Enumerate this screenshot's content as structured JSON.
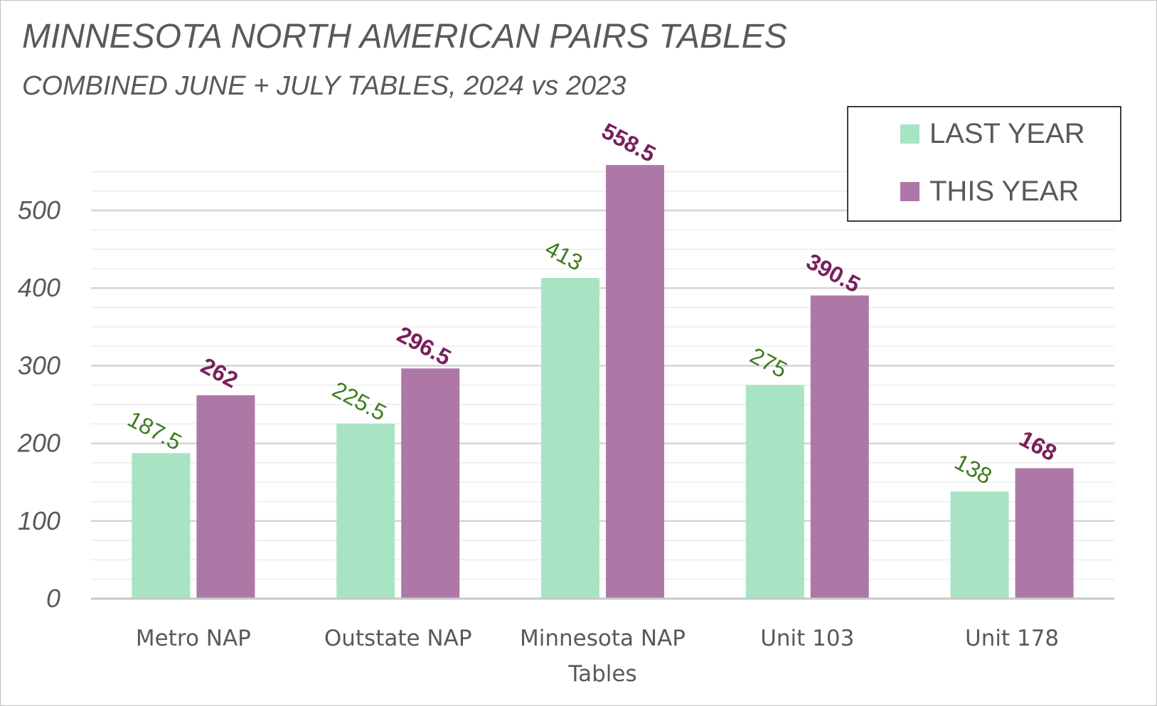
{
  "chart_data": {
    "type": "bar",
    "title": "MINNESOTA NORTH AMERICAN PAIRS TABLES",
    "subtitle": "COMBINED JUNE + JULY TABLES, 2024 vs 2023",
    "categories": [
      [
        "Metro NAP"
      ],
      [
        "Outstate NAP"
      ],
      [
        "Minnesota NAP",
        "Tables"
      ],
      [
        "Unit 103"
      ],
      [
        "Unit 178"
      ]
    ],
    "series": [
      {
        "name": "LAST YEAR",
        "color": "#a8e4c3",
        "label_color": "#3c7d1e",
        "values": [
          187.5,
          225.5,
          413,
          275,
          138
        ]
      },
      {
        "name": "THIS YEAR",
        "color": "#ad78a6",
        "label_color": "#7a1f5c",
        "values": [
          262,
          296.5,
          558.5,
          390.5,
          168
        ]
      }
    ],
    "yticks": [
      0,
      100,
      200,
      300,
      400,
      500
    ],
    "ylim": [
      0,
      550
    ],
    "minor_gridlines": true,
    "grid": true,
    "legend_position": "top-right",
    "data_labels_rotated": true
  }
}
